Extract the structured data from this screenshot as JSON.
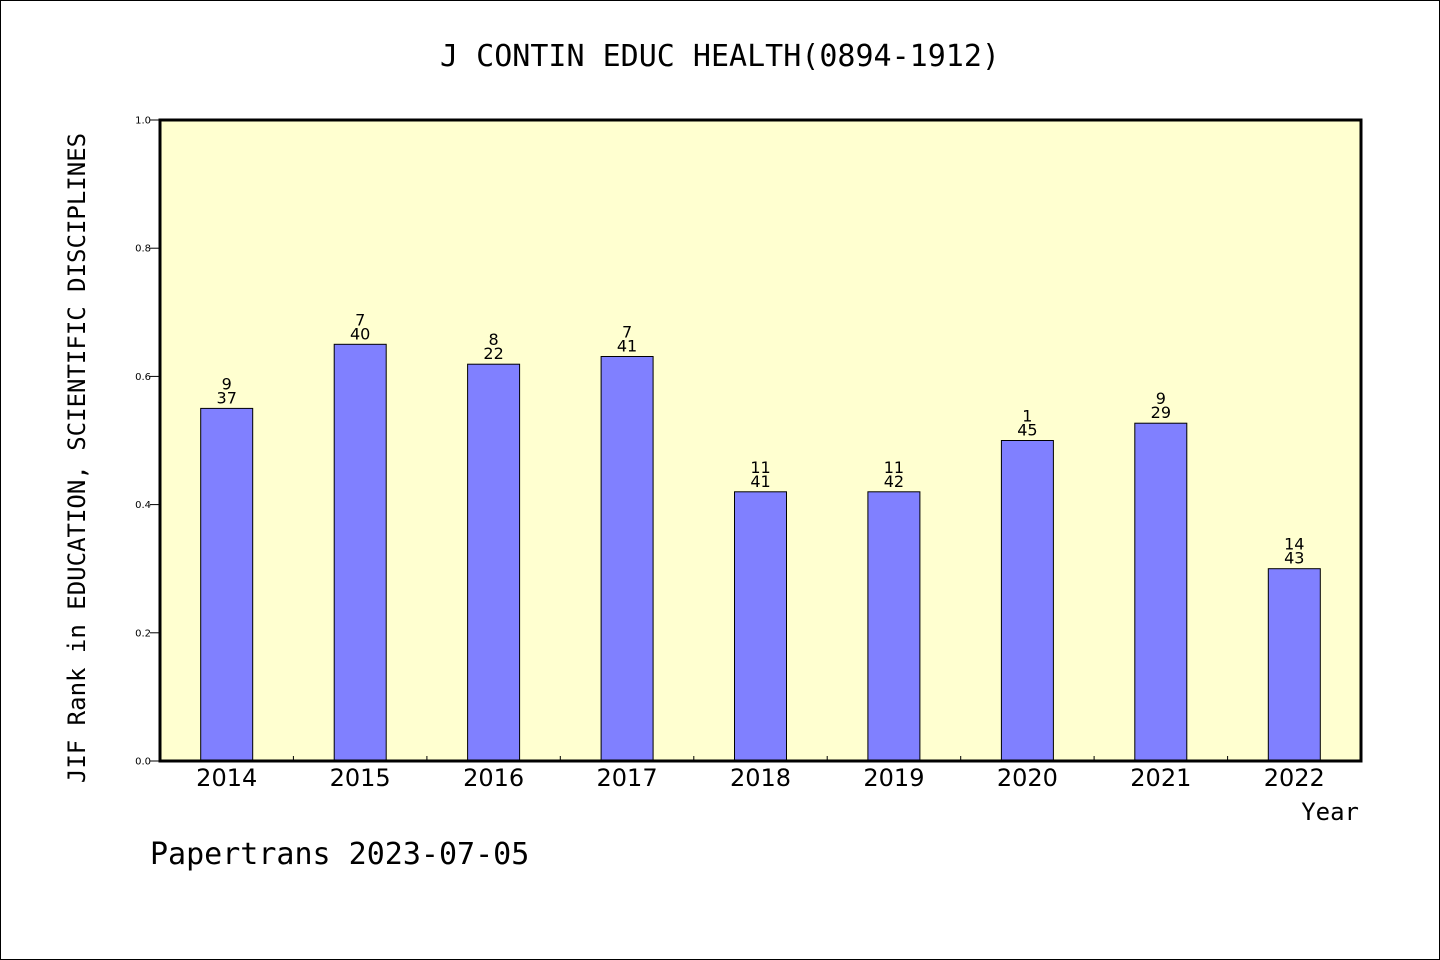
{
  "chart_data": {
    "type": "bar",
    "title": "J CONTIN EDUC HEALTH(0894-1912)",
    "xlabel": "Year",
    "ylabel": "JIF Rank in EDUCATION, SCIENTIFIC DISCIPLINES",
    "ylim": [
      0,
      1.0
    ],
    "yticks": [
      "0.0",
      "0.2",
      "0.4",
      "0.6",
      "0.8",
      "1.0"
    ],
    "ytick_values": [
      0,
      0.2,
      0.4,
      0.6,
      0.8,
      1.0
    ],
    "grid": false,
    "categories": [
      "2014",
      "2015",
      "2016",
      "2017",
      "2018",
      "2019",
      "2020",
      "2021",
      "2022"
    ],
    "values": [
      0.55,
      0.65,
      0.619,
      0.631,
      0.42,
      0.42,
      0.5,
      0.527,
      0.3
    ],
    "labels_top": [
      "9",
      "7",
      "8",
      "7",
      "11",
      "11",
      "1",
      "9",
      "14"
    ],
    "labels_bottom": [
      "37",
      "40",
      "22",
      "41",
      "41",
      "42",
      "45",
      "29",
      "43"
    ]
  },
  "colors": {
    "plot_background": "#ffffd0",
    "bar_fill": "#8080ff",
    "bar_stroke": "#000000"
  },
  "footer": {
    "credit": "Papertrans 2023-07-05"
  }
}
